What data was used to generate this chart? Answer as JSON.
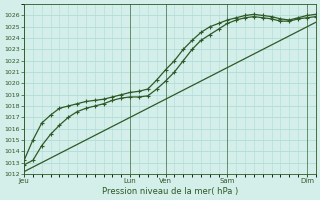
{
  "title": "Pression niveau de la mer( hPa )",
  "background_color": "#d4eeea",
  "grid_color": "#b0ddd8",
  "line_color": "#2d5a27",
  "ylim": [
    1012,
    1027
  ],
  "yticks": [
    1012,
    1013,
    1014,
    1015,
    1016,
    1017,
    1018,
    1019,
    1020,
    1021,
    1022,
    1023,
    1024,
    1025,
    1026
  ],
  "x_day_labels": [
    "Jeu",
    "Lun",
    "Ven",
    "Sam",
    "Dim"
  ],
  "x_day_positions": [
    0,
    12,
    16,
    23,
    32
  ],
  "xlim": [
    0,
    33
  ],
  "line_straight": [
    1012.2,
    1012.6,
    1013.0,
    1013.4,
    1013.8,
    1014.2,
    1014.6,
    1015.0,
    1015.4,
    1015.8,
    1016.2,
    1016.6,
    1017.0,
    1017.4,
    1017.8,
    1018.2,
    1018.6,
    1019.0,
    1019.4,
    1019.8,
    1020.2,
    1020.6,
    1021.0,
    1021.4,
    1021.8,
    1022.2,
    1022.6,
    1023.0,
    1023.4,
    1023.8,
    1024.2,
    1024.6,
    1025.0,
    1025.4
  ],
  "line_mid": [
    1012.8,
    1013.2,
    1014.5,
    1015.5,
    1016.3,
    1017.0,
    1017.5,
    1017.8,
    1018.0,
    1018.2,
    1018.5,
    1018.7,
    1018.8,
    1018.8,
    1018.9,
    1019.5,
    1020.2,
    1021.0,
    1022.0,
    1023.0,
    1023.8,
    1024.3,
    1024.8,
    1025.3,
    1025.6,
    1025.8,
    1025.9,
    1025.8,
    1025.7,
    1025.5,
    1025.5,
    1025.7,
    1025.8,
    1025.9
  ],
  "line_top": [
    1013.2,
    1015.0,
    1016.5,
    1017.2,
    1017.8,
    1018.0,
    1018.2,
    1018.4,
    1018.5,
    1018.6,
    1018.8,
    1019.0,
    1019.2,
    1019.3,
    1019.5,
    1020.3,
    1021.2,
    1022.0,
    1023.0,
    1023.8,
    1024.5,
    1025.0,
    1025.3,
    1025.6,
    1025.8,
    1026.0,
    1026.1,
    1026.0,
    1025.9,
    1025.7,
    1025.6,
    1025.8,
    1026.0,
    1026.1
  ]
}
